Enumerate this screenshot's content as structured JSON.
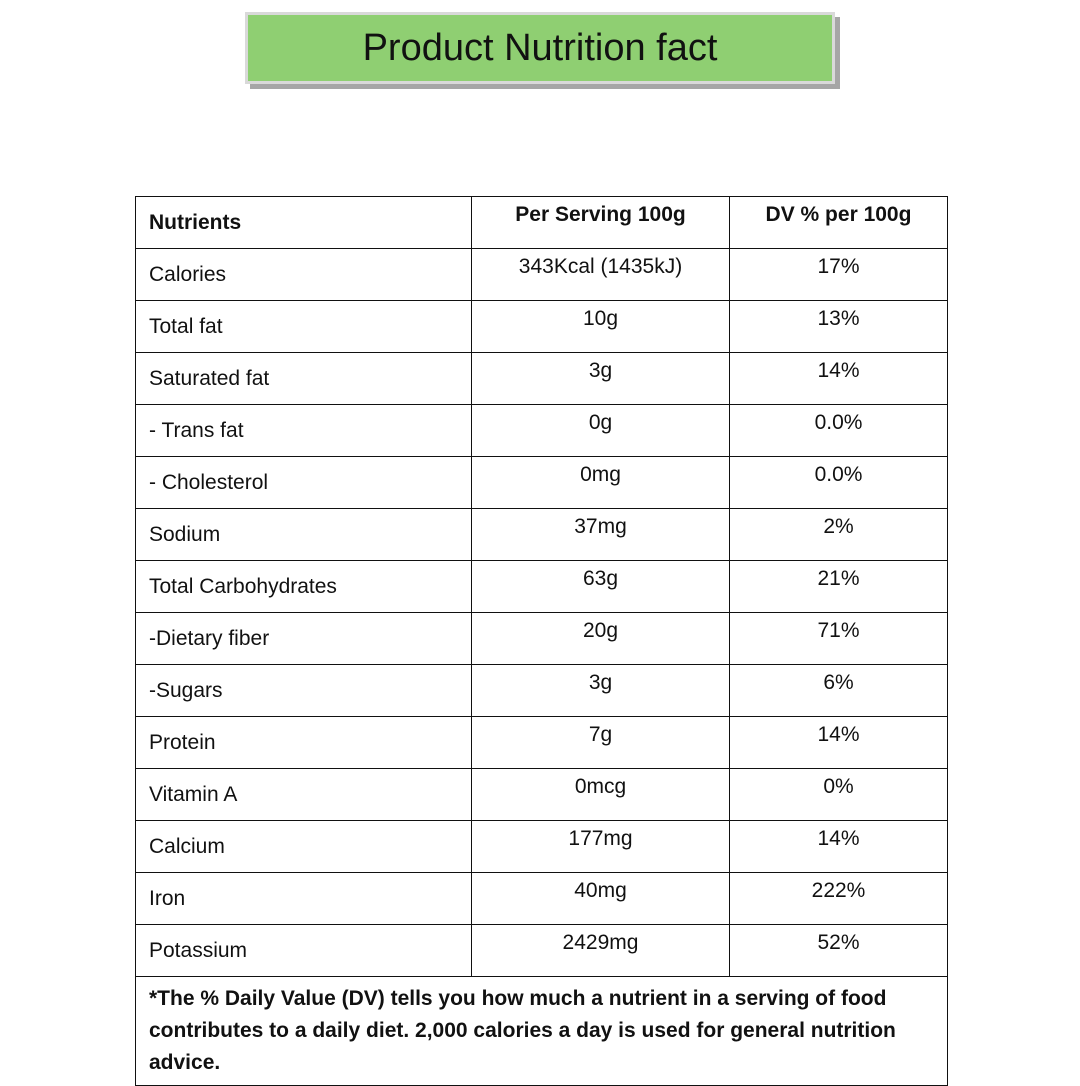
{
  "header": {
    "title": "Product Nutrition fact"
  },
  "table": {
    "columns": [
      "Nutrients",
      "Per Serving 100g",
      "DV % per 100g"
    ],
    "rows": [
      [
        "Calories",
        "343Kcal (1435kJ)",
        "17%"
      ],
      [
        "Total fat",
        "10g",
        "13%"
      ],
      [
        "Saturated fat",
        "3g",
        "14%"
      ],
      [
        "- Trans fat",
        "0g",
        "0.0%"
      ],
      [
        "- Cholesterol",
        "0mg",
        "0.0%"
      ],
      [
        "Sodium",
        "37mg",
        "2%"
      ],
      [
        "Total Carbohydrates",
        "63g",
        "21%"
      ],
      [
        "-Dietary fiber",
        "20g",
        "71%"
      ],
      [
        "-Sugars",
        "3g",
        "6%"
      ],
      [
        "Protein",
        "7g",
        "14%"
      ],
      [
        "Vitamin A",
        "0mcg",
        "0%"
      ],
      [
        "Calcium",
        "177mg",
        "14%"
      ],
      [
        "Iron",
        "40mg",
        "222%"
      ],
      [
        "Potassium",
        "2429mg",
        "52%"
      ]
    ],
    "footnote": "*The % Daily Value (DV) tells you how much a nutrient in a serving of food contributes to a daily diet. 2,000 calories a day is used for general nutrition advice."
  }
}
